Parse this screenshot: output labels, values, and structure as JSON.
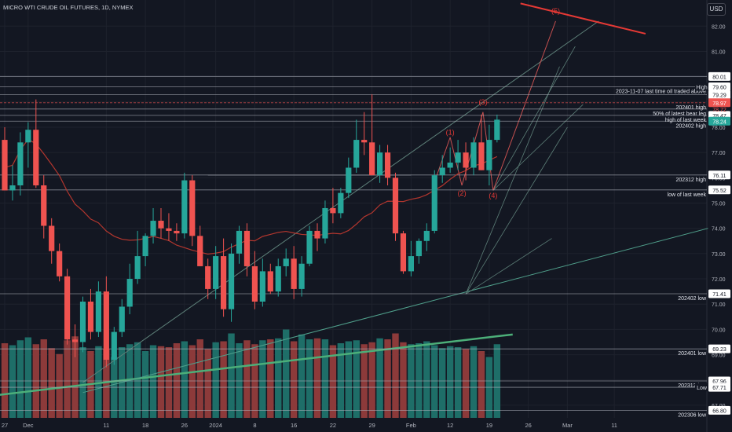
{
  "header": {
    "symbol_title": "MICRO WTI CRUDE OIL FUTURES, 1D, NYMEX",
    "currency": "USD"
  },
  "colors": {
    "up": "#26a69a",
    "down": "#ef5350",
    "vol_up": "#1e6e68",
    "vol_down": "#8c3a3a",
    "ma": "#b2362e",
    "trendline": "#4caf79",
    "elliott": "#e53935",
    "bg": "#131722"
  },
  "chart_data": {
    "type": "candlestick",
    "price_axis": {
      "min": 66.5,
      "max": 82.6,
      "ticks": [
        "82.00",
        "81.00",
        "80.00",
        "79.00",
        "78.00",
        "77.00",
        "76.00",
        "75.00",
        "74.00",
        "73.00",
        "72.00",
        "71.00",
        "70.00",
        "69.00",
        "68.00",
        "67.00"
      ]
    },
    "time_axis": [
      {
        "label": "27",
        "i": 0
      },
      {
        "label": "Dec",
        "i": 3
      },
      {
        "label": "11",
        "i": 13
      },
      {
        "label": "18",
        "i": 18
      },
      {
        "label": "26",
        "i": 23
      },
      {
        "label": "2024",
        "i": 27
      },
      {
        "label": "8",
        "i": 32
      },
      {
        "label": "16",
        "i": 37
      },
      {
        "label": "22",
        "i": 42
      },
      {
        "label": "29",
        "i": 47
      },
      {
        "label": "Feb",
        "i": 52
      },
      {
        "label": "12",
        "i": 57
      },
      {
        "label": "19",
        "i": 62
      },
      {
        "label": "26",
        "i": 67
      },
      {
        "label": "Mar",
        "i": 72
      },
      {
        "label": "11",
        "i": 78
      }
    ],
    "candles": [
      [
        77.5,
        78.0,
        75.5,
        75.5
      ],
      [
        75.5,
        76.5,
        75.1,
        75.7
      ],
      [
        75.7,
        77.8,
        75.3,
        77.4
      ],
      [
        77.4,
        78.2,
        76.4,
        77.9
      ],
      [
        77.9,
        79.1,
        75.6,
        75.7
      ],
      [
        75.7,
        76.1,
        73.6,
        74.1
      ],
      [
        74.1,
        74.4,
        72.6,
        73.1
      ],
      [
        73.1,
        73.4,
        71.9,
        72.1
      ],
      [
        72.1,
        72.4,
        69.4,
        69.6
      ],
      [
        69.6,
        70.2,
        68.9,
        69.5
      ],
      [
        69.5,
        71.3,
        69.1,
        71.1
      ],
      [
        71.1,
        71.6,
        69.6,
        69.9
      ],
      [
        69.9,
        71.9,
        69.7,
        71.5
      ],
      [
        71.5,
        72.1,
        68.5,
        68.8
      ],
      [
        68.8,
        70.1,
        68.6,
        69.9
      ],
      [
        69.9,
        71.2,
        69.7,
        70.9
      ],
      [
        70.9,
        72.6,
        70.6,
        72.0
      ],
      [
        72.0,
        73.9,
        71.8,
        72.9
      ],
      [
        72.9,
        73.8,
        72.5,
        73.7
      ],
      [
        73.7,
        74.8,
        73.4,
        74.3
      ],
      [
        74.3,
        74.8,
        73.6,
        74.0
      ],
      [
        74.0,
        74.6,
        73.5,
        73.9
      ],
      [
        73.9,
        74.2,
        73.5,
        73.8
      ],
      [
        73.8,
        76.2,
        73.6,
        75.9
      ],
      [
        75.9,
        76.1,
        73.3,
        73.7
      ],
      [
        73.7,
        74.1,
        72.5,
        72.5
      ],
      [
        72.5,
        72.8,
        71.2,
        71.6
      ],
      [
        71.6,
        73.3,
        71.2,
        72.9
      ],
      [
        72.9,
        73.6,
        70.5,
        70.8
      ],
      [
        70.8,
        73.4,
        70.3,
        73.0
      ],
      [
        73.0,
        74.1,
        72.6,
        73.9
      ],
      [
        73.9,
        74.2,
        72.1,
        72.5
      ],
      [
        72.5,
        73.1,
        70.8,
        71.1
      ],
      [
        71.1,
        72.8,
        70.9,
        72.3
      ],
      [
        72.3,
        72.6,
        71.4,
        71.5
      ],
      [
        71.5,
        72.8,
        71.3,
        72.5
      ],
      [
        72.5,
        73.2,
        72.1,
        72.8
      ],
      [
        72.8,
        73.3,
        71.2,
        71.6
      ],
      [
        71.6,
        72.9,
        71.3,
        72.6
      ],
      [
        72.6,
        74.1,
        72.5,
        73.9
      ],
      [
        73.9,
        74.2,
        73.1,
        73.6
      ],
      [
        73.6,
        75.1,
        73.4,
        74.8
      ],
      [
        74.8,
        75.6,
        74.2,
        74.6
      ],
      [
        74.6,
        75.6,
        74.4,
        75.4
      ],
      [
        75.4,
        76.8,
        75.2,
        76.4
      ],
      [
        76.4,
        78.3,
        76.2,
        77.5
      ],
      [
        77.5,
        78.6,
        76.9,
        77.4
      ],
      [
        77.4,
        79.3,
        76.1,
        76.1
      ],
      [
        76.1,
        77.3,
        75.8,
        77.0
      ],
      [
        77.0,
        77.3,
        75.7,
        76.0
      ],
      [
        76.0,
        76.2,
        73.5,
        73.8
      ],
      [
        73.8,
        73.9,
        72.2,
        72.3
      ],
      [
        72.3,
        73.5,
        72.1,
        72.9
      ],
      [
        72.9,
        73.6,
        72.6,
        73.5
      ],
      [
        73.5,
        74.2,
        73.1,
        73.9
      ],
      [
        73.9,
        76.3,
        73.8,
        76.1
      ],
      [
        76.1,
        76.9,
        75.8,
        76.4
      ],
      [
        76.4,
        77.2,
        76.2,
        76.6
      ],
      [
        76.6,
        77.5,
        76.3,
        77.0
      ],
      [
        77.0,
        77.4,
        75.9,
        76.4
      ],
      [
        76.4,
        77.6,
        76.1,
        77.4
      ],
      [
        77.4,
        78.5,
        76.3,
        76.3
      ],
      [
        76.3,
        78.1,
        75.7,
        77.5
      ],
      [
        77.5,
        78.5,
        77.4,
        78.3
      ]
    ],
    "volume_max": 100,
    "volume": [
      76,
      74,
      79,
      82,
      75,
      80,
      71,
      65,
      79,
      83,
      72,
      68,
      73,
      70,
      62,
      72,
      75,
      77,
      68,
      74,
      73,
      72,
      76,
      78,
      74,
      80,
      70,
      77,
      78,
      86,
      76,
      79,
      75,
      79,
      80,
      81,
      90,
      78,
      85,
      80,
      81,
      80,
      74,
      76,
      78,
      79,
      75,
      77,
      81,
      80,
      86,
      77,
      75,
      76,
      78,
      74,
      71,
      73,
      72,
      70,
      73,
      68,
      62,
      75
    ],
    "annotations": {
      "hlines": [
        {
          "price": 80.01,
          "text": "",
          "tag": "80.01",
          "tag_bg": "#ffffff",
          "tag_fg": "#131722",
          "color": "#b2b5be"
        },
        {
          "price": 79.6,
          "text": "2023-11-07 last time oil traded above",
          "tag": "79.60",
          "tag_bg": "#ffffff",
          "tag_fg": "#131722",
          "color": "#b2b5be",
          "badge": "High"
        },
        {
          "price": 79.29,
          "text": "",
          "tag": "79.29",
          "tag_bg": "#ffffff",
          "tag_fg": "#131722",
          "color": "#b2b5be"
        },
        {
          "price": 78.97,
          "text": "202401 high",
          "tag": "78.97",
          "tag_bg": "#ef5350",
          "tag_fg": "#ffffff",
          "color": "#ef5350",
          "dashed": true
        },
        {
          "price": 78.72,
          "text": "50% of latest bear leg",
          "tag": "",
          "color": "#b2b5be"
        },
        {
          "price": 78.47,
          "text": "high of last week",
          "tag": "78.47",
          "tag_bg": "#ffffff",
          "tag_fg": "#131722",
          "color": "#b2b5be"
        },
        {
          "price": 78.24,
          "text": "202402 high",
          "tag": "78.24",
          "tag_bg": "#26a69a",
          "tag_fg": "#ffffff",
          "color": "#b2b5be"
        },
        {
          "price": 76.11,
          "text": "202312 high",
          "tag": "76.11",
          "tag_bg": "#ffffff",
          "tag_fg": "#131722",
          "color": "#b2b5be"
        },
        {
          "price": 75.52,
          "text": "low of last week",
          "tag": "75.52",
          "tag_bg": "#ffffff",
          "tag_fg": "#131722",
          "color": "#b2b5be"
        },
        {
          "price": 71.41,
          "text": "202402 low",
          "tag": "71.41",
          "tag_bg": "#ffffff",
          "tag_fg": "#131722",
          "color": "#b2b5be"
        },
        {
          "price": 69.23,
          "text": "202401 low",
          "tag": "69.23",
          "tag_bg": "#ffffff",
          "tag_fg": "#131722",
          "color": "#b2b5be"
        },
        {
          "price": 67.96,
          "text": "202312 low",
          "tag": "67.96",
          "tag_bg": "#ffffff",
          "tag_fg": "#131722",
          "color": "#b2b5be"
        },
        {
          "price": 67.71,
          "text": "",
          "tag": "67.71",
          "tag_bg": "#ffffff",
          "tag_fg": "#131722",
          "color": "#b2b5be",
          "badge": "Low"
        },
        {
          "price": 66.8,
          "text": "202306 low",
          "tag": "66.80",
          "tag_bg": "#ffffff",
          "tag_fg": "#131722",
          "color": "#b2b5be"
        }
      ],
      "waves": [
        {
          "label": "(1)",
          "i": 57,
          "price": 77.7
        },
        {
          "label": "(2)",
          "i": 58.5,
          "price": 75.3
        },
        {
          "label": "(3)",
          "i": 61.2,
          "price": 78.9
        },
        {
          "label": "(4)",
          "i": 62.5,
          "price": 75.2
        },
        {
          "label": "(5)",
          "i": 70.5,
          "price": 82.5
        }
      ],
      "extra_price_labels": [
        {
          "text": "78.72",
          "price": 78.72,
          "color": "#ef5350"
        }
      ]
    }
  }
}
